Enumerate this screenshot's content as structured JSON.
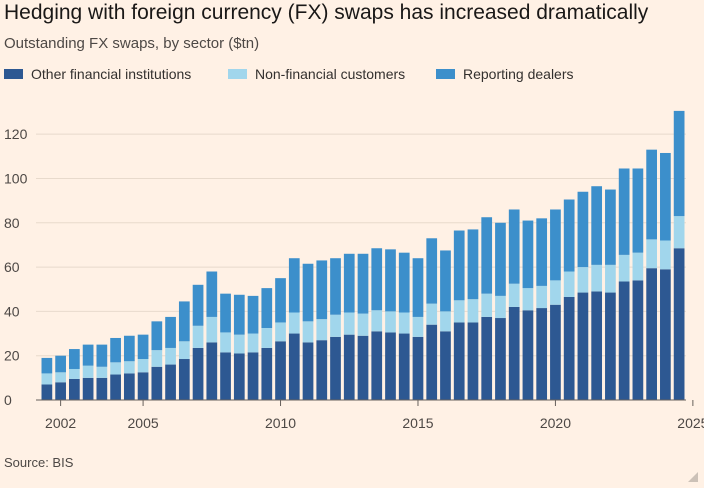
{
  "header": {
    "title": "Hedging with foreign currency (FX) swaps has increased dramatically",
    "subtitle": "Outstanding FX swaps, by sector ($tn)"
  },
  "legend": {
    "items": [
      {
        "label": "Other financial institutions",
        "color": "#2D5892"
      },
      {
        "label": "Non-financial customers",
        "color": "#A1D6EC"
      },
      {
        "label": "Reporting dealers",
        "color": "#3C8FCB"
      }
    ]
  },
  "footer": {
    "source": "Source: BIS"
  },
  "chart_data": {
    "type": "bar",
    "stacked": true,
    "title": "Hedging with foreign currency (FX) swaps has increased dramatically",
    "subtitle": "Outstanding FX swaps, by sector ($tn)",
    "xlabel": "",
    "ylabel": "",
    "ylim": [
      0,
      130
    ],
    "yticks": [
      0,
      20,
      40,
      60,
      80,
      100,
      120
    ],
    "xticks": [
      "2002",
      "2005",
      "2010",
      "2015",
      "2020",
      "2025"
    ],
    "grid": true,
    "legend_position": "top-left",
    "categories": [
      "2001 H2",
      "2002 H1",
      "2002 H2",
      "2003 H1",
      "2003 H2",
      "2004 H1",
      "2004 H2",
      "2005 H1",
      "2005 H2",
      "2006 H1",
      "2006 H2",
      "2007 H1",
      "2007 H2",
      "2008 H1",
      "2008 H2",
      "2009 H1",
      "2009 H2",
      "2010 H1",
      "2010 H2",
      "2011 H1",
      "2011 H2",
      "2012 H1",
      "2012 H2",
      "2013 H1",
      "2013 H2",
      "2014 H1",
      "2014 H2",
      "2015 H1",
      "2015 H2",
      "2016 H1",
      "2016 H2",
      "2017 H1",
      "2017 H2",
      "2018 H1",
      "2018 H2",
      "2019 H1",
      "2019 H2",
      "2020 H1",
      "2020 H2",
      "2021 H1",
      "2021 H2",
      "2022 H1",
      "2022 H2",
      "2023 H1",
      "2023 H2",
      "2024 H1",
      "2024 H2"
    ],
    "series": [
      {
        "name": "Other financial institutions",
        "color": "#2D5892",
        "values": [
          7,
          8,
          9.5,
          10,
          10,
          11.5,
          12,
          12.5,
          15,
          16,
          18.5,
          23.5,
          26,
          21.5,
          21,
          21.5,
          23.5,
          26.5,
          30,
          26,
          27,
          28.5,
          29.5,
          29,
          31,
          30.5,
          30,
          28.5,
          34,
          31,
          35,
          35,
          37.5,
          37,
          42,
          40.5,
          41.5,
          43,
          46.5,
          48.5,
          49,
          48.5,
          53.5,
          54,
          59.5,
          59,
          68.5
        ]
      },
      {
        "name": "Non-financial customers",
        "color": "#A1D6EC",
        "values": [
          5,
          4.5,
          4.5,
          5.5,
          5,
          5.5,
          5.5,
          6,
          7.5,
          7.5,
          8,
          10,
          11.5,
          9,
          8.5,
          8.5,
          9,
          8.5,
          9.5,
          9.5,
          9.5,
          10,
          10,
          10,
          9.5,
          9.5,
          9.5,
          9,
          9.5,
          9,
          10,
          10.5,
          10.5,
          10,
          10.5,
          10,
          10,
          11,
          11.5,
          11.5,
          12,
          12.5,
          12,
          12.5,
          13,
          13,
          14.5
        ]
      },
      {
        "name": "Reporting dealers",
        "color": "#3C8FCB",
        "values": [
          7,
          7.5,
          9,
          9.5,
          10,
          11,
          11.5,
          11,
          13,
          14,
          18,
          18.5,
          20.5,
          17.5,
          18,
          17,
          18,
          20,
          24.5,
          26,
          26.5,
          25.5,
          26.5,
          27,
          28,
          28,
          27,
          26.5,
          29.5,
          27.5,
          31.5,
          31.5,
          34.5,
          33,
          33.5,
          30.5,
          30.5,
          32,
          32.5,
          34,
          35.5,
          34,
          39,
          38,
          40.5,
          39.5,
          47.5
        ]
      }
    ]
  }
}
